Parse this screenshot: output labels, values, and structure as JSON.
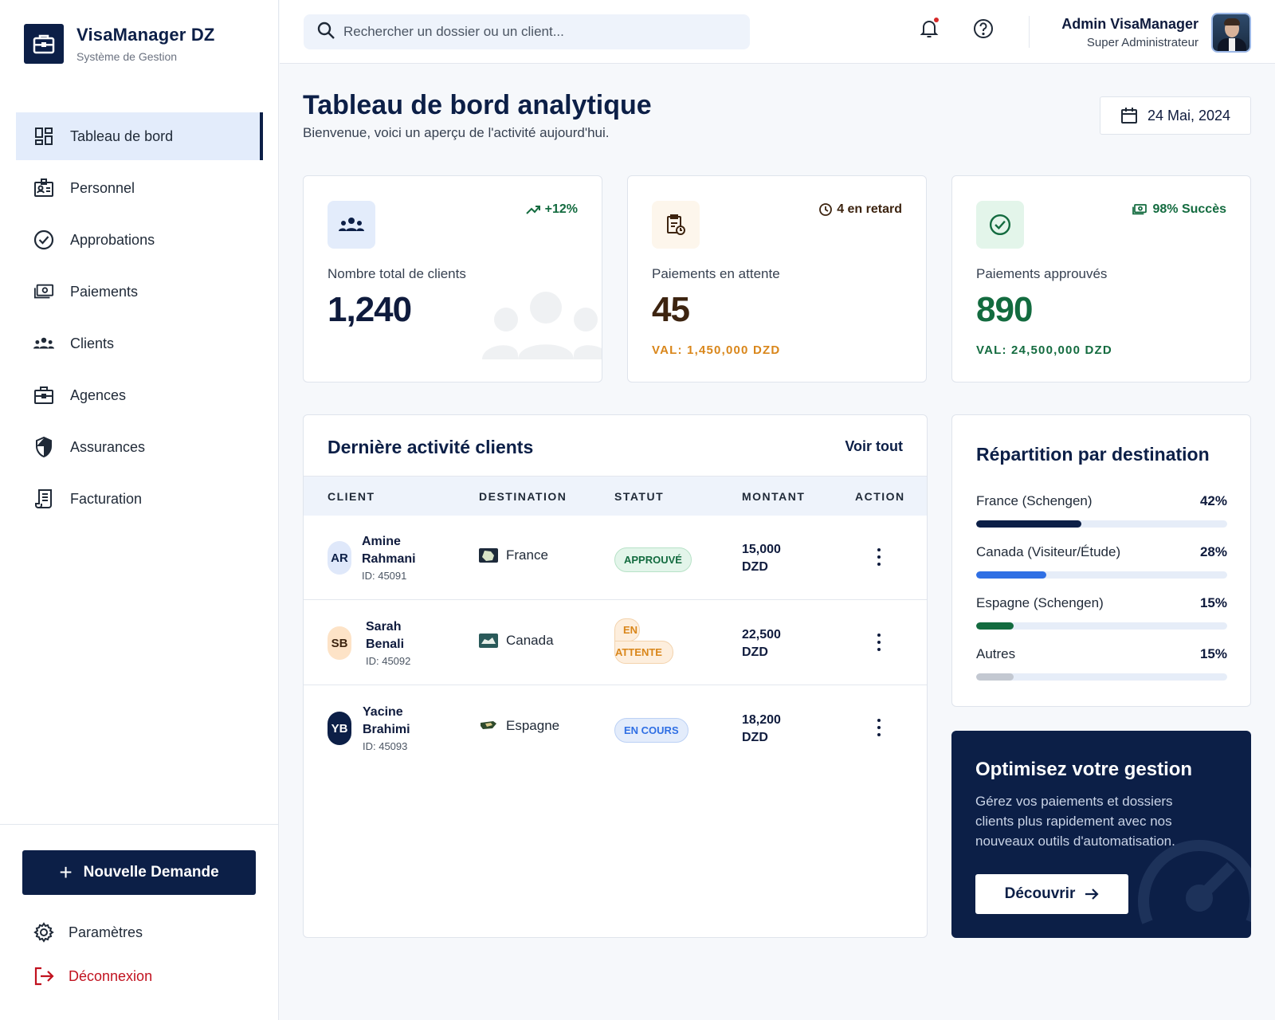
{
  "brand": {
    "title": "VisaManager DZ",
    "subtitle": "Système de Gestion"
  },
  "nav": {
    "items": [
      {
        "label": "Tableau de bord",
        "icon": "dashboard-icon",
        "active": true
      },
      {
        "label": "Personnel",
        "icon": "badge-icon"
      },
      {
        "label": "Approbations",
        "icon": "check-circle-icon"
      },
      {
        "label": "Paiements",
        "icon": "payments-icon"
      },
      {
        "label": "Clients",
        "icon": "groups-icon"
      },
      {
        "label": "Agences",
        "icon": "briefcase-icon"
      },
      {
        "label": "Assurances",
        "icon": "shield-icon"
      },
      {
        "label": "Facturation",
        "icon": "receipt-icon"
      }
    ],
    "new_request": "Nouvelle Demande",
    "settings": "Paramètres",
    "logout": "Déconnexion"
  },
  "header": {
    "search_placeholder": "Rechercher un dossier ou un client...",
    "user_name": "Admin VisaManager",
    "user_role": "Super Administrateur"
  },
  "page": {
    "title": "Tableau de bord analytique",
    "subtitle": "Bienvenue, voici un aperçu de l'activité aujourd'hui.",
    "date": "24 Mai, 2024"
  },
  "stats": [
    {
      "label": "Nombre total de clients",
      "value": "1,240",
      "badge": "+12%",
      "sub": "",
      "color": "#0f1b3d"
    },
    {
      "label": "Paiements en attente",
      "value": "45",
      "badge": "4 en retard",
      "sub": "VAL: 1,450,000 DZD",
      "color": "#3d2410",
      "sub_color": "#d9861a"
    },
    {
      "label": "Paiements approuvés",
      "value": "890",
      "badge": "98% Succès",
      "sub": "VAL: 24,500,000 DZD",
      "color": "#136b3f"
    }
  ],
  "activity": {
    "title": "Dernière activité clients",
    "see_all": "Voir tout",
    "columns": [
      "CLIENT",
      "DESTINATION",
      "STATUT",
      "MONTANT",
      "ACTION"
    ],
    "rows": [
      {
        "initials": "AR",
        "first": "Amine",
        "last": "Rahmani",
        "id": "ID: 45091",
        "destination": "France",
        "status": "APPROUVÉ",
        "amount_value": "15,000",
        "amount_currency": "DZD"
      },
      {
        "initials": "SB",
        "first": "Sarah",
        "last": "Benali",
        "id": "ID: 45092",
        "destination": "Canada",
        "status_line1": "EN",
        "status_line2": "ATTENTE",
        "amount_value": "22,500",
        "amount_currency": "DZD"
      },
      {
        "initials": "YB",
        "first": "Yacine",
        "last": "Brahimi",
        "id": "ID: 45093",
        "destination": "Espagne",
        "status": "EN COURS",
        "amount_value": "18,200",
        "amount_currency": "DZD"
      }
    ]
  },
  "destinations": {
    "title": "Répartition par destination",
    "items": [
      {
        "label": "France (Schengen)",
        "pct_text": "42%",
        "value": 42,
        "color": "#0c1f47"
      },
      {
        "label": "Canada (Visiteur/Étude)",
        "pct_text": "28%",
        "value": 28,
        "color": "#2f6fe4"
      },
      {
        "label": "Espagne (Schengen)",
        "pct_text": "15%",
        "value": 15,
        "color": "#136b3f"
      },
      {
        "label": "Autres",
        "pct_text": "15%",
        "value": 15,
        "color": "#c3c8d1"
      }
    ]
  },
  "promo": {
    "title": "Optimisez votre gestion",
    "text": "Gérez vos paiements et dossiers clients plus rapidement avec nos nouveaux outils d'automatisation.",
    "button": "Découvrir"
  }
}
